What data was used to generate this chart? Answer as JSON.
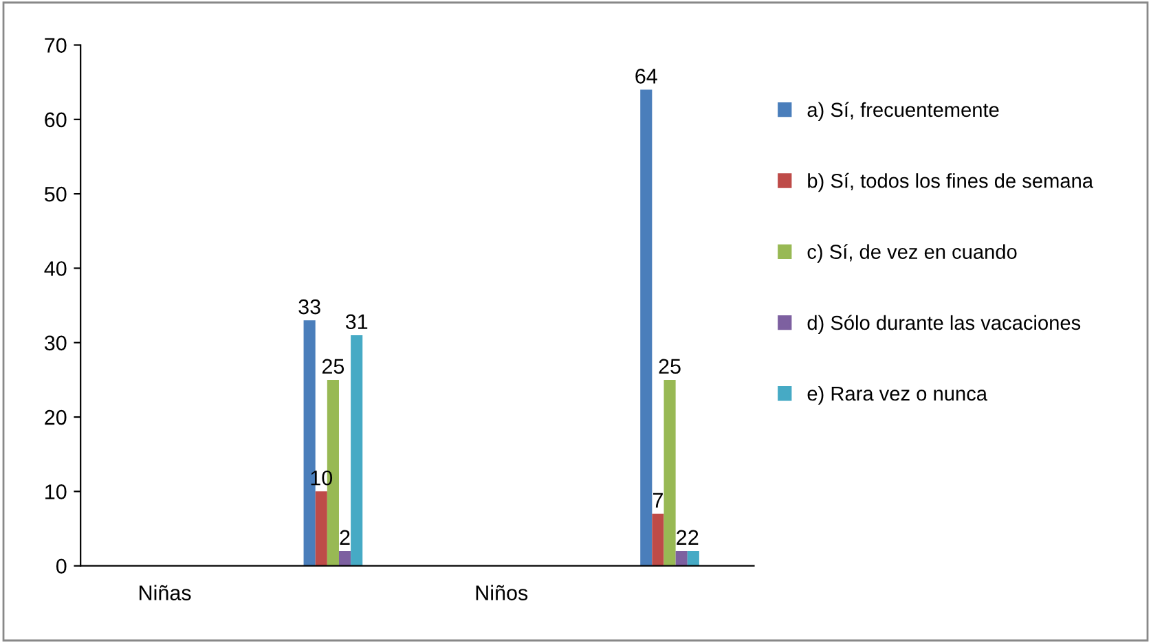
{
  "chart_data": {
    "type": "bar",
    "categories": [
      "Niñas",
      null,
      "Niños",
      null
    ],
    "series": [
      {
        "name": "a) Sí, frecuentemente",
        "color": "#4a7ebb",
        "values": [
          null,
          33,
          null,
          64
        ]
      },
      {
        "name": "b) Sí, todos los fines de semana",
        "color": "#be4b48",
        "values": [
          null,
          10,
          null,
          7
        ]
      },
      {
        "name": "c) Sí, de vez en cuando",
        "color": "#98b954",
        "values": [
          null,
          25,
          null,
          25
        ]
      },
      {
        "name": "d) Sólo durante las vacaciones",
        "color": "#7d60a0",
        "values": [
          null,
          2,
          null,
          2
        ]
      },
      {
        "name": "e) Rara vez o nunca",
        "color": "#46aac5",
        "values": [
          null,
          31,
          null,
          2
        ]
      }
    ],
    "ylim": [
      0,
      70
    ],
    "yticks": [
      0,
      10,
      20,
      30,
      40,
      50,
      60,
      70
    ],
    "data_labels": true,
    "grid": false,
    "legend": "right"
  }
}
